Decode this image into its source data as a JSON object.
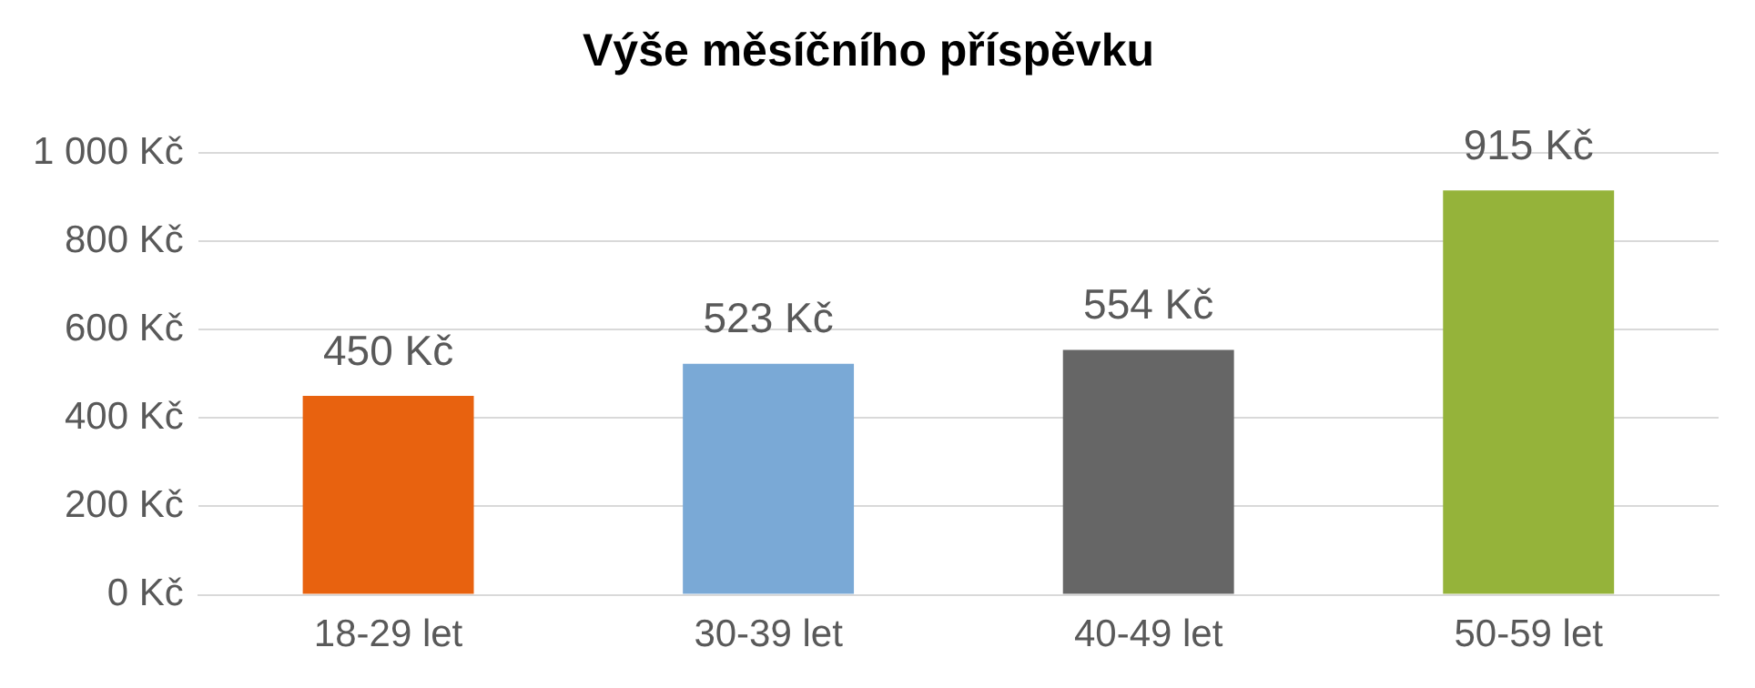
{
  "chart_data": {
    "type": "bar",
    "title": "Výše měsíčního příspěvku",
    "categories": [
      "18-29 let",
      "30-39 let",
      "40-49 let",
      "50-59 let"
    ],
    "values": [
      450,
      523,
      554,
      915
    ],
    "colors": [
      "#e8620f",
      "#7aa9d6",
      "#666666",
      "#95b33a"
    ],
    "value_labels": [
      "450 Kč",
      "523 Kč",
      "554 Kč",
      "915 Kč"
    ],
    "ylim": [
      0,
      1000
    ],
    "yticks": [
      {
        "value": 0,
        "label": "0 Kč"
      },
      {
        "value": 200,
        "label": "200 Kč"
      },
      {
        "value": 400,
        "label": "400 Kč"
      },
      {
        "value": 600,
        "label": "600 Kč"
      },
      {
        "value": 800,
        "label": "800 Kč"
      },
      {
        "value": 1000,
        "label": "1 000 Kč"
      }
    ],
    "grid": "y",
    "legend": false
  }
}
